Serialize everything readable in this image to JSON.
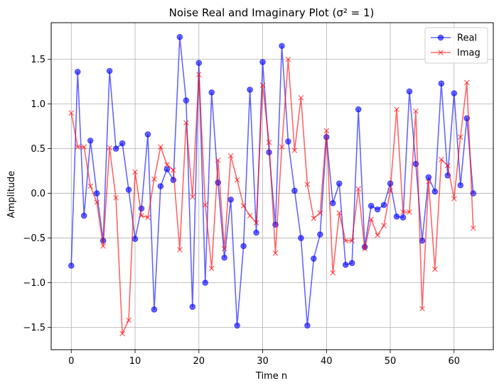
{
  "chart_data": {
    "type": "line",
    "title": "Noise Real and Imaginary Plot (σ² = 1)",
    "xlabel": "Time n",
    "ylabel": "Amplitude",
    "xlim": [
      -3.15,
      66.15
    ],
    "ylim": [
      -1.75,
      1.91
    ],
    "xticks": [
      0,
      10,
      20,
      30,
      40,
      50,
      60
    ],
    "yticks": [
      -1.5,
      -1.0,
      -0.5,
      0.0,
      0.5,
      1.0,
      1.5
    ],
    "ytick_labels": [
      "−1.5",
      "−1.0",
      "−0.5",
      "0.0",
      "0.5",
      "1.0",
      "1.5"
    ],
    "grid": true,
    "legend": "top-right",
    "x": [
      0,
      1,
      2,
      3,
      4,
      5,
      6,
      7,
      8,
      9,
      10,
      11,
      12,
      13,
      14,
      15,
      16,
      17,
      18,
      19,
      20,
      21,
      22,
      23,
      24,
      25,
      26,
      27,
      28,
      29,
      30,
      31,
      32,
      33,
      34,
      35,
      36,
      37,
      38,
      39,
      40,
      41,
      42,
      43,
      44,
      45,
      46,
      47,
      48,
      49,
      50,
      51,
      52,
      53,
      54,
      55,
      56,
      57,
      58,
      59,
      60,
      61,
      62,
      63
    ],
    "series": [
      {
        "name": "Real",
        "color": "#0000ff",
        "marker": "circle",
        "values": [
          -0.81,
          1.36,
          -0.25,
          0.59,
          0.0,
          -0.53,
          1.37,
          0.5,
          0.56,
          0.04,
          -0.51,
          -0.17,
          0.66,
          -1.3,
          0.08,
          0.27,
          0.15,
          1.75,
          1.04,
          -1.27,
          1.46,
          -1.0,
          1.13,
          0.12,
          -0.72,
          -0.07,
          -1.48,
          -0.59,
          1.16,
          -0.44,
          1.47,
          0.46,
          -0.35,
          1.65,
          0.58,
          0.03,
          -0.5,
          -1.48,
          -0.73,
          -0.46,
          0.63,
          -0.11,
          0.11,
          -0.8,
          -0.78,
          0.94,
          -0.6,
          -0.14,
          -0.18,
          -0.13,
          0.11,
          -0.26,
          -0.27,
          1.14,
          0.33,
          -0.53,
          0.18,
          0.02,
          1.23,
          0.2,
          1.12,
          0.09,
          0.84,
          0.0
        ]
      },
      {
        "name": "Imag",
        "color": "#ff0000",
        "marker": "x",
        "values": [
          0.9,
          0.52,
          0.52,
          0.08,
          -0.1,
          -0.59,
          0.51,
          -0.05,
          -1.57,
          -1.42,
          0.24,
          -0.25,
          -0.27,
          0.16,
          0.52,
          0.32,
          0.26,
          -0.63,
          0.79,
          -0.04,
          1.33,
          -0.13,
          -0.84,
          0.37,
          -0.62,
          0.42,
          0.15,
          -0.14,
          -0.25,
          -0.33,
          1.21,
          0.57,
          -0.67,
          0.52,
          1.5,
          0.48,
          1.07,
          0.1,
          -0.28,
          -0.22,
          0.7,
          -0.89,
          -0.22,
          -0.53,
          -0.53,
          0.05,
          -0.62,
          -0.29,
          -0.47,
          -0.36,
          0.03,
          0.94,
          -0.21,
          -0.21,
          0.92,
          -1.29,
          0.13,
          -0.85,
          0.38,
          0.31,
          -0.06,
          0.63,
          1.24,
          -0.39
        ]
      }
    ]
  }
}
